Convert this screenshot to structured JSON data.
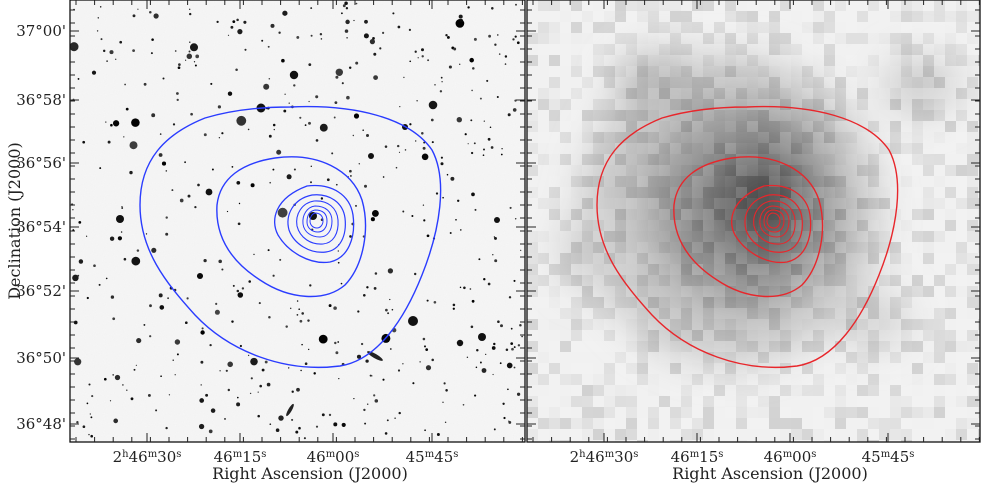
{
  "chart_data": [
    {
      "type": "contour-image",
      "panel": "left",
      "image": "optical",
      "contour_color": "#2a3cff",
      "xlabel": "Right Ascension (J2000)",
      "ylabel": "Declination (J2000)",
      "x_ticks": [
        {
          "h": "2",
          "hu": "h",
          "m": "46",
          "mu": "m",
          "s": "30",
          "su": "s"
        },
        {
          "h": "",
          "hu": "",
          "m": "46",
          "mu": "m",
          "s": "15",
          "su": "s"
        },
        {
          "h": "",
          "hu": "",
          "m": "46",
          "mu": "m",
          "s": "00",
          "su": "s"
        },
        {
          "h": "",
          "hu": "",
          "m": "45",
          "mu": "m",
          "s": "45",
          "su": "s"
        }
      ],
      "y_ticks": [
        "37°00'",
        "36°58'",
        "36°56'",
        "36°54'",
        "36°52'",
        "36°50'",
        "36°48'"
      ]
    },
    {
      "type": "contour-image",
      "panel": "right",
      "image": "x-ray",
      "contour_color": "#e8262b",
      "xlabel": "Right Ascension (J2000)",
      "ylabel": "",
      "x_ticks": [
        {
          "h": "2",
          "hu": "h",
          "m": "46",
          "mu": "m",
          "s": "30",
          "su": "s"
        },
        {
          "h": "",
          "hu": "",
          "m": "46",
          "mu": "m",
          "s": "15",
          "su": "s"
        },
        {
          "h": "",
          "hu": "",
          "m": "46",
          "mu": "m",
          "s": "00",
          "su": "s"
        },
        {
          "h": "",
          "hu": "",
          "m": "45",
          "mu": "m",
          "s": "45",
          "su": "s"
        }
      ],
      "y_ticks": []
    }
  ]
}
